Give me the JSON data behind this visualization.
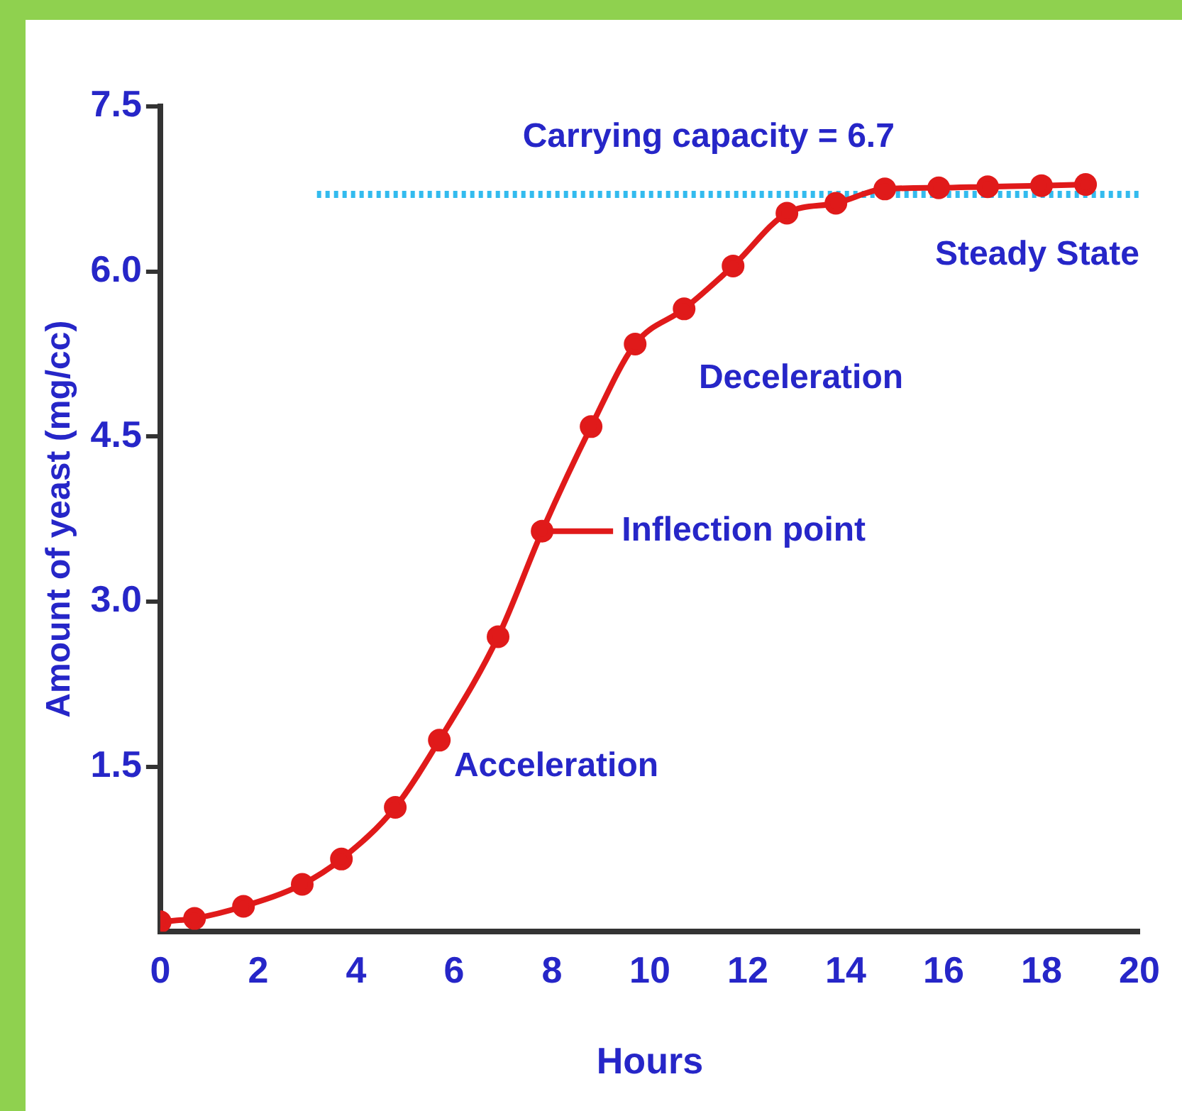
{
  "chart_data": {
    "type": "line",
    "xlabel": "Hours",
    "ylabel": "Amount of yeast (mg/cc)",
    "xlim": [
      0,
      20
    ],
    "xticks": [
      0,
      2,
      4,
      6,
      8,
      10,
      12,
      14,
      16,
      18,
      20
    ],
    "ylim": [
      0,
      7.5
    ],
    "yticks": [
      {
        "value": 1.5,
        "label": "1.5"
      },
      {
        "value": 3,
        "label": "3.0"
      },
      {
        "value": 4.5,
        "label": "4.5"
      },
      {
        "value": 6,
        "label": "6.0"
      },
      {
        "value": 7.5,
        "label": "7.5"
      }
    ],
    "series": [
      {
        "color": "#e01a1a",
        "x": [
          0,
          0.7,
          1.7,
          2.9,
          3.7,
          4.8,
          5.7,
          6.9,
          7.8,
          8.8,
          9.7,
          10.7,
          11.7,
          12.8,
          13.8,
          14.8,
          15.9,
          16.9,
          18,
          18.9
        ],
        "values": [
          0.09,
          0.12,
          0.23,
          0.43,
          0.66,
          1.13,
          1.74,
          2.68,
          3.64,
          4.59,
          5.34,
          5.66,
          6.05,
          6.53,
          6.62,
          6.75,
          6.76,
          6.77,
          6.78,
          6.79
        ]
      }
    ],
    "ref_lines": [
      {
        "axis": "y",
        "value": 6.7,
        "label": "Carrying capacity = 6.7",
        "color": "#33bbee",
        "line_style": "dotted"
      }
    ],
    "annotations": [
      {
        "text": "Inflection point",
        "x": 7.8,
        "y": 3.64
      },
      "Acceleration",
      "Deceleration",
      "Steady State"
    ],
    "marker": "circle",
    "line_style": "solid",
    "grid": false,
    "legend": false
  }
}
